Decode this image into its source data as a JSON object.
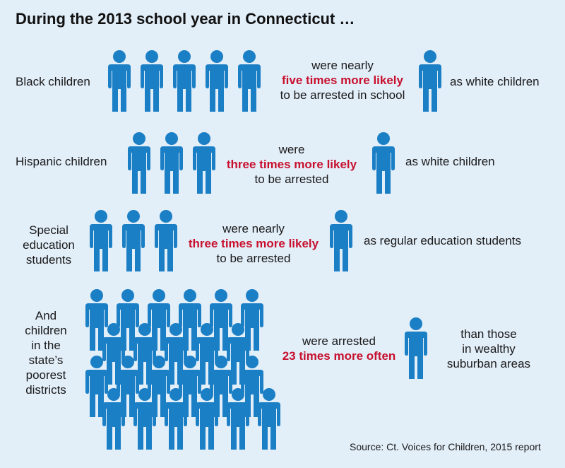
{
  "title": "During the 2013 school year in Connecticut …",
  "colors": {
    "figure": "#1b7fc6",
    "highlight": "#c8102e",
    "background": "#e2eef8"
  },
  "icon": "person-icon",
  "rows": [
    {
      "group_label": "Black children",
      "lead": "were nearly",
      "highlight": "five times more likely",
      "tail": "to be arrested in school",
      "comparison": "as white children",
      "group_figures": 5,
      "comparison_figures": 1
    },
    {
      "group_label": "Hispanic children",
      "lead": "were",
      "highlight": "three times more likely",
      "tail": "to be arrested",
      "comparison": "as white children",
      "group_figures": 3,
      "comparison_figures": 1
    },
    {
      "group_label_lines": [
        "Special",
        "education",
        "students"
      ],
      "lead": "were nearly",
      "highlight": "three times more likely",
      "tail": "to be arrested",
      "comparison": "as regular education students",
      "group_figures": 3,
      "comparison_figures": 1
    },
    {
      "group_label_lines": [
        "And",
        "children",
        "in the",
        "state’s",
        "poorest",
        "districts"
      ],
      "lead": "were arrested",
      "highlight": "23 times more often",
      "comparison_lines": [
        "than those",
        "in wealthy",
        "suburban areas"
      ],
      "group_figures": 23,
      "comparison_figures": 1
    }
  ],
  "source": "Source: Ct. Voices for Children, 2015 report"
}
